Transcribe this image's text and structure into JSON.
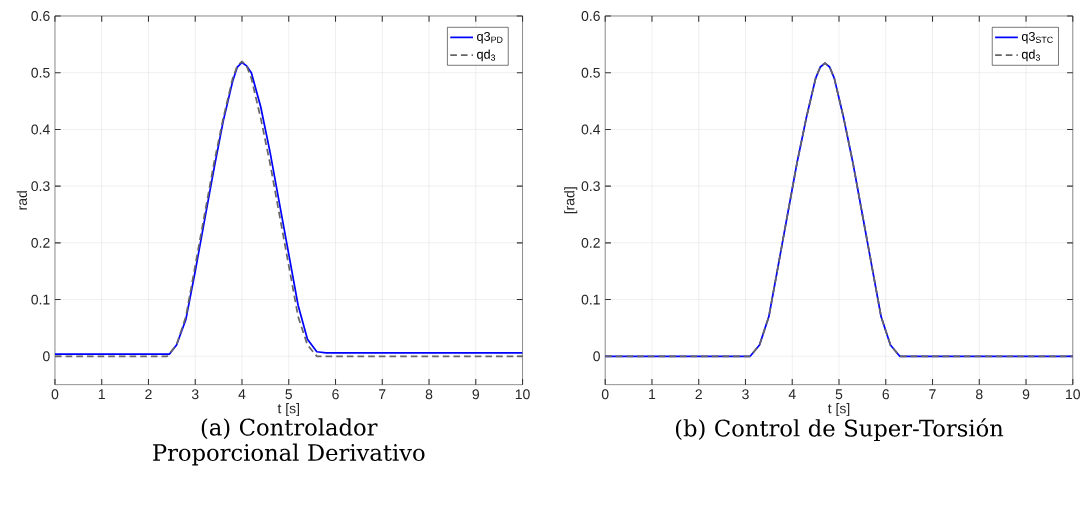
{
  "chart_data": [
    {
      "type": "line",
      "title": "(a) Controlador Proporcional Derivativo",
      "xlabel": "t [s]",
      "ylabel": "rad",
      "xlim": [
        0,
        10
      ],
      "ylim": [
        -0.05,
        0.6
      ],
      "xticks": [
        0,
        1,
        2,
        3,
        4,
        5,
        6,
        7,
        8,
        9,
        10
      ],
      "yticks": [
        0,
        0.1,
        0.2,
        0.3,
        0.4,
        0.5,
        0.6
      ],
      "grid": true,
      "legend": "top right",
      "series": [
        {
          "name": "q3$_{PD}$",
          "color": "#0000ff",
          "line_style": "solid",
          "x": [
            0,
            2.45,
            2.6,
            2.8,
            3.0,
            3.2,
            3.4,
            3.6,
            3.8,
            3.9,
            4.0,
            4.1,
            4.2,
            4.4,
            4.6,
            4.8,
            5.0,
            5.2,
            5.4,
            5.6,
            5.8,
            10
          ],
          "values": [
            0.004,
            0.004,
            0.02,
            0.065,
            0.15,
            0.24,
            0.33,
            0.415,
            0.485,
            0.51,
            0.518,
            0.512,
            0.5,
            0.44,
            0.36,
            0.27,
            0.18,
            0.09,
            0.03,
            0.008,
            0.006,
            0.006
          ]
        },
        {
          "name": "qd$_{3}$",
          "color": "#666666",
          "line_style": "dashed",
          "x": [
            0,
            2.4,
            2.6,
            2.8,
            3.0,
            3.2,
            3.4,
            3.6,
            3.8,
            3.9,
            4.0,
            4.1,
            4.2,
            4.4,
            4.6,
            4.8,
            5.0,
            5.2,
            5.4,
            5.6,
            10
          ],
          "values": [
            0,
            0,
            0.02,
            0.07,
            0.16,
            0.25,
            0.34,
            0.42,
            0.49,
            0.512,
            0.52,
            0.512,
            0.49,
            0.42,
            0.34,
            0.25,
            0.16,
            0.07,
            0.02,
            0,
            0
          ]
        }
      ]
    },
    {
      "type": "line",
      "title": "(b) Control de Super-Torsión",
      "xlabel": "t [s]",
      "ylabel": "[rad]",
      "xlim": [
        0,
        10
      ],
      "ylim": [
        -0.05,
        0.6
      ],
      "xticks": [
        0,
        1,
        2,
        3,
        4,
        5,
        6,
        7,
        8,
        9,
        10
      ],
      "yticks": [
        0,
        0.1,
        0.2,
        0.3,
        0.4,
        0.5,
        0.6
      ],
      "grid": true,
      "legend": "top right",
      "series": [
        {
          "name": "q3$_{STC}$",
          "color": "#0000ff",
          "line_style": "solid",
          "x": [
            0,
            3.1,
            3.3,
            3.5,
            3.7,
            3.9,
            4.1,
            4.3,
            4.5,
            4.6,
            4.7,
            4.8,
            4.9,
            5.1,
            5.3,
            5.5,
            5.7,
            5.9,
            6.1,
            6.3,
            10
          ],
          "values": [
            0,
            0,
            0.02,
            0.07,
            0.16,
            0.25,
            0.34,
            0.42,
            0.49,
            0.51,
            0.517,
            0.51,
            0.49,
            0.42,
            0.34,
            0.25,
            0.16,
            0.07,
            0.02,
            0,
            0
          ]
        },
        {
          "name": "qd$_{3}$",
          "color": "#666666",
          "line_style": "dashed",
          "x": [
            0,
            3.1,
            3.3,
            3.5,
            3.7,
            3.9,
            4.1,
            4.3,
            4.5,
            4.6,
            4.7,
            4.8,
            4.9,
            5.1,
            5.3,
            5.5,
            5.7,
            5.9,
            6.1,
            6.3,
            10
          ],
          "values": [
            0,
            0,
            0.02,
            0.07,
            0.16,
            0.25,
            0.34,
            0.42,
            0.49,
            0.51,
            0.517,
            0.51,
            0.49,
            0.42,
            0.34,
            0.25,
            0.16,
            0.07,
            0.02,
            0,
            0
          ]
        }
      ]
    }
  ]
}
